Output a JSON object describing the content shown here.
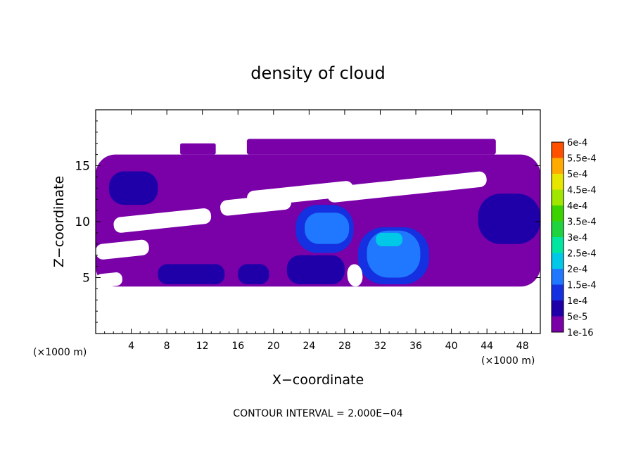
{
  "chart_data": {
    "type": "heatmap",
    "title": "density of cloud",
    "xlabel": "X−coordinate",
    "ylabel": "Z−coordinate",
    "x_unit": "(×1000 m)",
    "x_unit_right": "(×1000 m)",
    "footnote": "CONTOUR INTERVAL = 2.000E−04",
    "xlim": [
      0,
      50
    ],
    "ylim": [
      0,
      20
    ],
    "x_ticks": [
      4,
      8,
      12,
      16,
      20,
      24,
      28,
      32,
      36,
      40,
      44,
      48
    ],
    "y_ticks": [
      5,
      10,
      15
    ],
    "colorbar": {
      "levels": [
        "1e-16",
        "5e-5",
        "1e-4",
        "1.5e-4",
        "2e-4",
        "2.5e-4",
        "3e-4",
        "3.5e-4",
        "4e-4",
        "4.5e-4",
        "5e-4",
        "5.5e-4",
        "6e-4"
      ],
      "colors": [
        "#7a00a8",
        "#1f00a8",
        "#1530e0",
        "#1f78ff",
        "#00c8e6",
        "#00e6a0",
        "#1fd240",
        "#3cd200",
        "#a0e600",
        "#e6e600",
        "#ffaa00",
        "#ff5000",
        "#ff1e1e",
        "#ff9090"
      ]
    },
    "cloud_regions": [
      {
        "level": 0,
        "x0": 0,
        "x1": 50,
        "z0": 4.2,
        "z1": 16
      },
      {
        "level": 0,
        "x0": 9.5,
        "x1": 13.5,
        "z0": 16,
        "z1": 17
      },
      {
        "level": 0,
        "x0": 17,
        "x1": 45,
        "z0": 16,
        "z1": 17.4
      },
      {
        "level": 1,
        "x0": 1.5,
        "x1": 7,
        "z0": 11.5,
        "z1": 14.5
      },
      {
        "level": 1,
        "x0": 43,
        "x1": 50,
        "z0": 8,
        "z1": 12.5
      },
      {
        "level": 1,
        "x0": 21.5,
        "x1": 28,
        "z0": 4.4,
        "z1": 7
      },
      {
        "level": 1,
        "x0": 7,
        "x1": 14.5,
        "z0": 4.4,
        "z1": 6.2
      },
      {
        "level": 1,
        "x0": 16,
        "x1": 19.5,
        "z0": 4.4,
        "z1": 6.2
      },
      {
        "level": 2,
        "x0": 22.5,
        "x1": 29,
        "z0": 7.2,
        "z1": 11.5
      },
      {
        "level": 2,
        "x0": 29.5,
        "x1": 37.5,
        "z0": 4.4,
        "z1": 9.5
      },
      {
        "level": 3,
        "x0": 23.5,
        "x1": 28.5,
        "z0": 8,
        "z1": 10.8
      },
      {
        "level": 3,
        "x0": 30.5,
        "x1": 36.5,
        "z0": 5,
        "z1": 9.2
      },
      {
        "level": 4,
        "x0": 31.5,
        "x1": 34.5,
        "z0": 7.8,
        "z1": 9
      }
    ],
    "gaps": [
      {
        "x0": 17,
        "x1": 29,
        "z0": 11.8,
        "z1": 13.2
      },
      {
        "x0": 26,
        "x1": 44,
        "z0": 12.4,
        "z1": 13.8
      },
      {
        "x0": 2,
        "x1": 13,
        "z0": 9.4,
        "z1": 10.8
      },
      {
        "x0": 14,
        "x1": 22,
        "z0": 10.8,
        "z1": 12.2
      },
      {
        "x0": 0,
        "x1": 6,
        "z0": 6.8,
        "z1": 8.2
      },
      {
        "x0": 28.3,
        "x1": 30,
        "z0": 4.2,
        "z1": 6.2
      },
      {
        "x0": 0,
        "x1": 3,
        "z0": 4.2,
        "z1": 5.4
      }
    ]
  }
}
